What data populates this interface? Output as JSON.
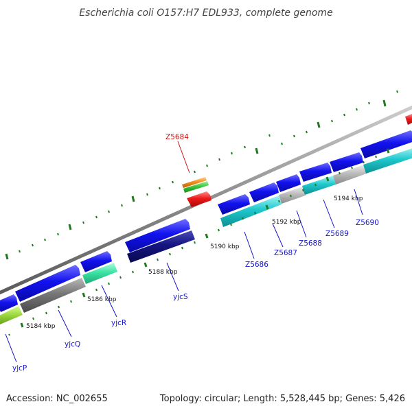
{
  "title": "Escherichia coli O157:H7 EDL933, complete genome",
  "footer": {
    "accession": "Accession: NC_002655",
    "topology": "Topology: circular; Length: 5,528,445 bp; Genes: 5,426"
  },
  "ruler_labels": [
    "5184 kbp",
    "5186 kbp",
    "5188 kbp",
    "5190 kbp",
    "5192 kbp",
    "5194 kbp"
  ],
  "gene_labels": [
    "yjcP",
    "yjcQ",
    "yjcR",
    "yjcS",
    "Z5684",
    "Z5686",
    "Z5687",
    "Z5688",
    "Z5689",
    "Z5690"
  ],
  "colors": {
    "backbone": "#8c8c8c",
    "forward_cds": "#1212ee",
    "reverse_cds_teal": "#1ec8cc",
    "reverse_cds_gray": "#777777",
    "reverse_cds_silver": "#bbbbbb",
    "reverse_cds_navy": "#141480",
    "reverse_cds_mint": "#3be4a4",
    "reverse_cds_lime": "#9bd83c",
    "feature_red": "#ee1a1a",
    "feature_orange": "#f5901e",
    "feature_green": "#3cc83c",
    "tick_green": "#1f7a1f",
    "label_blue": "#1515c8",
    "label_red": "#d21414"
  }
}
